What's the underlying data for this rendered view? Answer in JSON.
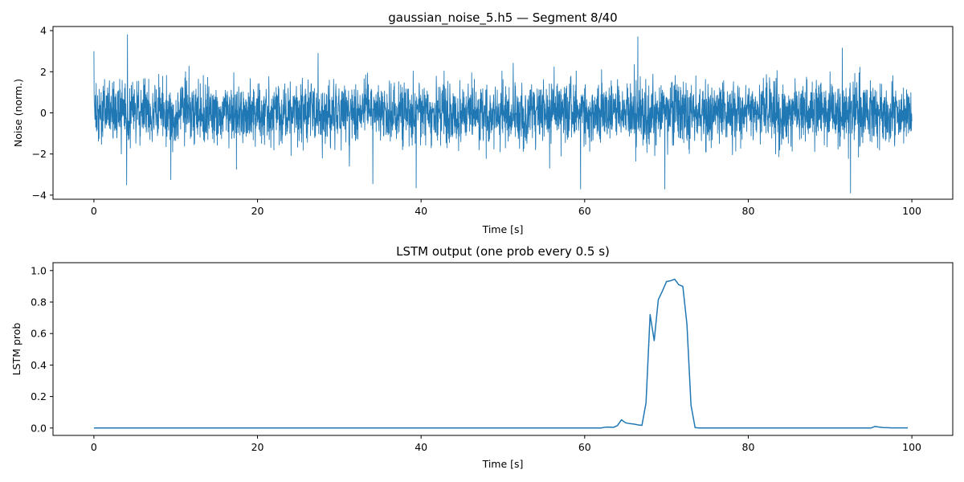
{
  "chart_data": [
    {
      "type": "line",
      "title": "gaussian_noise_5.h5 — Segment 8/40",
      "xlabel": "Time [s]",
      "ylabel": "Noise (norm.)",
      "xlim": [
        -5,
        105
      ],
      "ylim": [
        -4.2,
        4.2
      ],
      "xticks": [
        0,
        20,
        40,
        60,
        80,
        100
      ],
      "yticks": [
        -4,
        -2,
        0,
        2,
        4
      ],
      "x_range": [
        0,
        100
      ],
      "noise_sigma": 0.75,
      "noise_extremes": [
        {
          "x": 0.0,
          "y": 3.0
        },
        {
          "x": 4.1,
          "y": 3.8
        },
        {
          "x": 4.0,
          "y": -3.5
        },
        {
          "x": 9.4,
          "y": -3.25
        },
        {
          "x": 34.1,
          "y": -3.45
        },
        {
          "x": 39.4,
          "y": -3.65
        },
        {
          "x": 59.5,
          "y": -3.7
        },
        {
          "x": 66.5,
          "y": 3.7
        },
        {
          "x": 69.8,
          "y": -3.7
        },
        {
          "x": 92.5,
          "y": -3.9
        },
        {
          "x": 91.5,
          "y": 3.15
        }
      ],
      "grid": false,
      "color": "#1f77b4"
    },
    {
      "type": "line",
      "title": "LSTM output (one prob every 0.5 s)",
      "xlabel": "Time [s]",
      "ylabel": "LSTM prob",
      "xlim": [
        -5,
        105
      ],
      "ylim": [
        -0.047,
        1.05
      ],
      "xticks": [
        0,
        20,
        40,
        60,
        80,
        100
      ],
      "yticks": [
        0.0,
        0.2,
        0.4,
        0.6,
        0.8,
        1.0
      ],
      "x": [
        0,
        62,
        62.5,
        63,
        63.5,
        64,
        64.5,
        65,
        65.5,
        66,
        66.5,
        67,
        67.5,
        68,
        68.5,
        69,
        69.5,
        70,
        70.5,
        71,
        71.5,
        72,
        72.5,
        73,
        73.5,
        74,
        95,
        95.5,
        96,
        96.5,
        97,
        97.5,
        99.5
      ],
      "y": [
        0,
        0,
        0.005,
        0.006,
        0.004,
        0.015,
        0.052,
        0.033,
        0.028,
        0.025,
        0.02,
        0.017,
        0.16,
        0.72,
        0.555,
        0.815,
        0.87,
        0.93,
        0.935,
        0.945,
        0.91,
        0.9,
        0.66,
        0.145,
        0.003,
        0,
        0,
        0.01,
        0.006,
        0.003,
        0.002,
        0.001,
        0.001
      ],
      "grid": false,
      "color": "#1f77b4"
    }
  ]
}
